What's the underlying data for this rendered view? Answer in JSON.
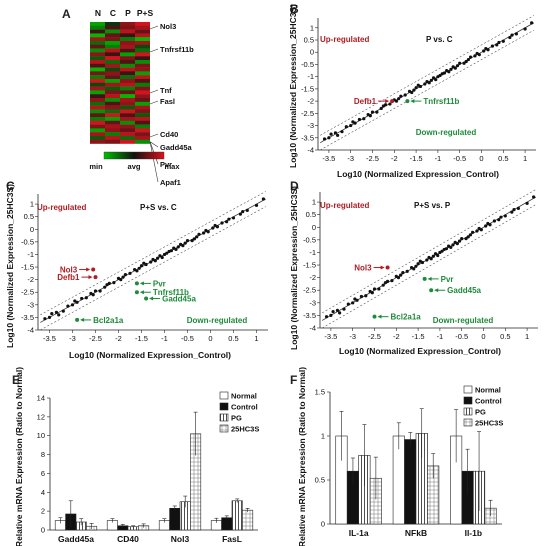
{
  "panel_labels": [
    "A",
    "B",
    "C",
    "D",
    "E",
    "F"
  ],
  "heatmap": {
    "columns": [
      "N",
      "C",
      "P",
      "P+S"
    ],
    "genes": [
      "Nol3",
      "Tnfrsf11b",
      "Tnf",
      "Fasl",
      "Cd40",
      "Gadd45a",
      "Pvr",
      "Apaf1"
    ],
    "legend": [
      "min",
      "avg",
      "max"
    ],
    "colors": {
      "low": "#00c000",
      "mid": "#111111",
      "high": "#e0101a"
    },
    "values": [
      [
        -0.8,
        -0.2,
        0.6,
        0.9
      ],
      [
        -0.6,
        0.3,
        0.5,
        0.7
      ],
      [
        0.2,
        -0.7,
        0.8,
        0.4
      ],
      [
        -0.9,
        0.4,
        0.2,
        0.8
      ],
      [
        0.7,
        0.5,
        -0.6,
        -0.9
      ],
      [
        -0.5,
        -0.8,
        0.6,
        0.7
      ],
      [
        0.4,
        -0.6,
        0.7,
        -0.3
      ],
      [
        -0.7,
        0.8,
        0.3,
        -0.5
      ],
      [
        0.6,
        0.2,
        -0.8,
        0.9
      ],
      [
        -0.4,
        0.9,
        0.5,
        0.2
      ],
      [
        0.8,
        -0.5,
        0.3,
        -0.7
      ],
      [
        0.3,
        0.7,
        -0.7,
        0.5
      ],
      [
        -0.9,
        -0.3,
        0.8,
        0.6
      ],
      [
        0.5,
        0.6,
        0.2,
        -0.8
      ],
      [
        -0.6,
        0.4,
        -0.5,
        0.8
      ],
      [
        0.9,
        -0.8,
        0.6,
        0.3
      ],
      [
        -0.3,
        0.7,
        0.8,
        -0.6
      ],
      [
        0.7,
        -0.4,
        -0.6,
        0.5
      ],
      [
        -0.8,
        0.5,
        0.4,
        0.9
      ],
      [
        0.2,
        0.8,
        -0.9,
        0.6
      ],
      [
        0.6,
        -0.7,
        0.7,
        0.4
      ],
      [
        -0.5,
        0.3,
        0.6,
        -0.8
      ],
      [
        0.8,
        0.6,
        -0.4,
        0.7
      ],
      [
        -0.7,
        -0.5,
        0.9,
        0.5
      ],
      [
        0.4,
        0.9,
        0.3,
        -0.4
      ],
      [
        -0.6,
        -0.8,
        0.7,
        0.8
      ],
      [
        0.9,
        0.4,
        -0.7,
        0.3
      ],
      [
        0.5,
        0.7,
        0.6,
        -0.6
      ],
      [
        -0.8,
        0.6,
        0.4,
        0.9
      ],
      [
        0.7,
        -0.6,
        0.8,
        0.5
      ],
      [
        -0.4,
        0.8,
        -0.5,
        0.7
      ],
      [
        0.6,
        0.5,
        0.9,
        -0.7
      ]
    ]
  },
  "scatter_axes": {
    "xlabel": "Log10 (Normalized Expression_Control)",
    "ylabel": "Log10 (Normalized Expression_25HC3S)",
    "ticks": [
      -3.5,
      -3,
      -2.5,
      -2,
      -1.5,
      -1,
      -0.5,
      0,
      0.5,
      1
    ],
    "tick_labels": [
      "-3.5",
      "-3",
      "-2.5",
      "-2",
      "-1.5",
      "-1",
      "-0.5",
      "0",
      "0.5",
      "1"
    ],
    "up_label": "Up-regulated",
    "down_label": "Down-regulated",
    "up_color": "#b01c22",
    "down_color": "#1f8a3a"
  },
  "panel_B": {
    "title": "P vs. C",
    "up_genes": [
      {
        "name": "Defb1",
        "x": -2.05,
        "y": -2.0
      }
    ],
    "down_genes": [
      {
        "name": "Tnfrsf11b",
        "x": -1.7,
        "y": -2.0
      }
    ]
  },
  "panel_C": {
    "title": "P+S vs. C",
    "up_genes": [
      {
        "name": "Nol3",
        "x": -2.55,
        "y": -1.6
      },
      {
        "name": "Defb1",
        "x": -2.5,
        "y": -1.9
      }
    ],
    "down_genes": [
      {
        "name": "Pvr",
        "x": -1.6,
        "y": -2.15
      },
      {
        "name": "Tnfrsf11b",
        "x": -1.6,
        "y": -2.5
      },
      {
        "name": "Gadd45a",
        "x": -1.4,
        "y": -2.75
      },
      {
        "name": "Bcl2a1a",
        "x": -2.9,
        "y": -3.6
      }
    ]
  },
  "panel_D": {
    "title": "P+S vs. P",
    "up_genes": [
      {
        "name": "Nol3",
        "x": -2.2,
        "y": -1.6
      }
    ],
    "down_genes": [
      {
        "name": "Pvr",
        "x": -1.35,
        "y": -2.05
      },
      {
        "name": "Gadd45a",
        "x": -1.2,
        "y": -2.5
      },
      {
        "name": "Bcl2a1a",
        "x": -2.5,
        "y": -3.55
      }
    ]
  },
  "chart_data": [
    {
      "type": "bar",
      "panel": "E",
      "ylabel": "Relative mRNA Expression (Ratio to Normal)",
      "yticks": [
        0,
        2,
        4,
        6,
        8,
        10,
        12,
        14
      ],
      "ylim": [
        0,
        14
      ],
      "categories": [
        "Gadd45a",
        "CD40",
        "Nol3",
        "FasL"
      ],
      "series": [
        {
          "name": "Normal",
          "values": [
            1.0,
            1.0,
            1.0,
            1.0
          ],
          "errors": [
            0.3,
            0.2,
            0.2,
            0.25
          ]
        },
        {
          "name": "Control",
          "values": [
            1.7,
            0.45,
            2.3,
            1.3
          ],
          "errors": [
            1.4,
            0.15,
            0.25,
            0.2
          ]
        },
        {
          "name": "PG",
          "values": [
            0.85,
            0.35,
            3.0,
            3.1
          ],
          "errors": [
            0.35,
            0.1,
            0.6,
            0.2
          ]
        },
        {
          "name": "25HC3S",
          "values": [
            0.4,
            0.45,
            10.2,
            2.1
          ],
          "errors": [
            0.3,
            0.2,
            2.3,
            0.2
          ]
        }
      ]
    },
    {
      "type": "bar",
      "panel": "F",
      "ylabel": "Relative mRNA Expression (Ratio to Normal)",
      "yticks": [
        0,
        0.5,
        1,
        1.5
      ],
      "ytick_labels": [
        "0",
        "0.5",
        "1",
        "1.5"
      ],
      "ylim": [
        0,
        1.5
      ],
      "categories": [
        "IL-1a",
        "NFkB",
        "Il-1b"
      ],
      "series": [
        {
          "name": "Normal",
          "values": [
            1.0,
            1.0,
            1.0
          ],
          "errors": [
            0.28,
            0.15,
            0.3
          ]
        },
        {
          "name": "Control",
          "values": [
            0.6,
            0.96,
            0.6
          ],
          "errors": [
            0.15,
            0.08,
            0.25
          ]
        },
        {
          "name": "PG",
          "values": [
            0.78,
            1.03,
            0.6
          ],
          "errors": [
            0.35,
            0.28,
            0.45
          ]
        },
        {
          "name": "25HC3S",
          "values": [
            0.52,
            0.66,
            0.18
          ],
          "errors": [
            0.24,
            0.14,
            0.09
          ]
        }
      ]
    }
  ]
}
